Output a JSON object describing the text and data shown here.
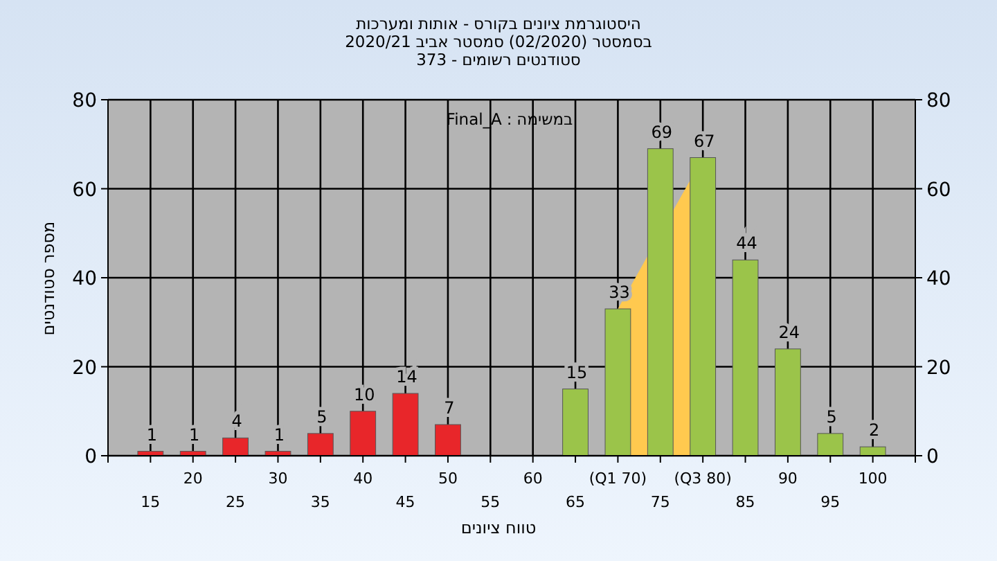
{
  "chart_data": {
    "type": "bar",
    "title": "ומערכות אותות - בקורס ציונים היסטוגרמת",
    "subtitle": "2020/21 אביב סמסטר (02/2020) בסמסטר\n373 - רשומים סטודנטים",
    "xlabel": "ציונים טווח",
    "ylabel": "סטודנטים מספר",
    "annotations": [
      "Final_A : במשימה"
    ],
    "categories": [
      "15",
      "20",
      "25",
      "30",
      "35",
      "40",
      "45",
      "50",
      "55",
      "60",
      "65",
      "(Q1 70)",
      "75",
      "(Q3 80)",
      "85",
      "90",
      "95",
      "100"
    ],
    "series": [
      {
        "type": "area",
        "color": "#ffc94f",
        "values": [
          null,
          null,
          null,
          null,
          null,
          null,
          null,
          null,
          null,
          null,
          null,
          33,
          null,
          67,
          null,
          null,
          null,
          null
        ]
      },
      {
        "colors": [
          "#e8262a",
          "#e8262a",
          "#e8262a",
          "#e8262a",
          "#e8262a",
          "#e8262a",
          "#e8262a",
          "#e8262a",
          null,
          null,
          "#9bc44a",
          "#9bc44a",
          "#9bc44a",
          "#9bc44a",
          "#9bc44a",
          "#9bc44a",
          "#9bc44a",
          "#9bc44a"
        ],
        "values": [
          1,
          1,
          4,
          1,
          5,
          10,
          14,
          7,
          null,
          null,
          15,
          33,
          69,
          67,
          44,
          24,
          5,
          2
        ],
        "value_labels": [
          "1",
          "1",
          "4",
          "1",
          "5",
          "10",
          "14",
          "7",
          null,
          null,
          "15",
          "33",
          "69",
          "67",
          "44",
          "24",
          "5",
          "2"
        ]
      }
    ],
    "ylim": [
      0,
      80
    ],
    "yticks": [
      0,
      20,
      40,
      60,
      80
    ],
    "y2lim": [
      0,
      80
    ],
    "y2ticks": [
      0,
      20,
      40,
      60,
      80
    ],
    "grid": true
  }
}
